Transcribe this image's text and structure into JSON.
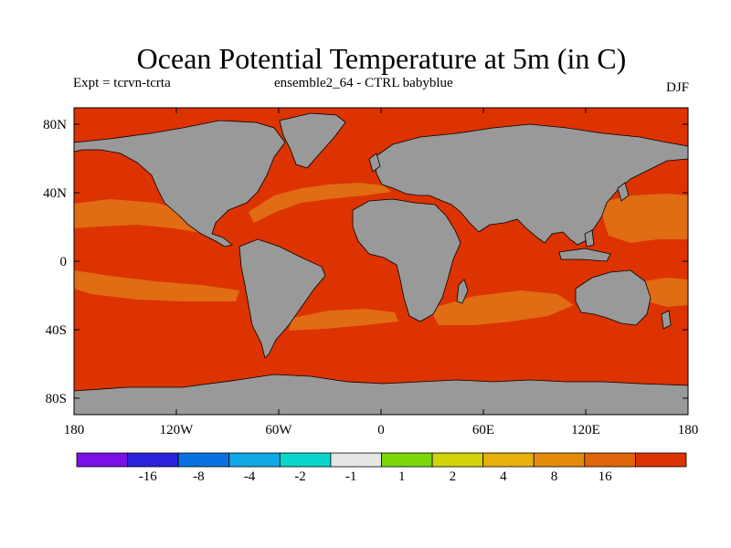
{
  "title": "Ocean Potential Temperature at 5m (in C)",
  "experiment": "Expt = tcrvn-tcrta",
  "ensemble": "ensemble2_64 - CTRL babyblue",
  "season": "DJF",
  "map": {
    "lat_ticks": [
      "80N",
      "40N",
      "0",
      "40S",
      "80S"
    ],
    "lon_ticks": [
      "180",
      "120W",
      "60W",
      "0",
      "60E",
      "120E",
      "180"
    ],
    "colors": {
      "land": "#999999",
      "warm_high": "#dd3300",
      "warm_mid": "#e06c14",
      "coast": "#000000"
    }
  },
  "colorbar": {
    "colors": [
      "#7a10e6",
      "#2a20dd",
      "#0a72e0",
      "#10a8e6",
      "#0ad6cc",
      "#e6e6e6",
      "#7ad70a",
      "#d2d20a",
      "#e6b10a",
      "#e68a0a",
      "#e0650a",
      "#dd3300"
    ],
    "labels": [
      "-16",
      "-8",
      "-4",
      "-2",
      "-1",
      "1",
      "2",
      "4",
      "8",
      "16"
    ]
  }
}
